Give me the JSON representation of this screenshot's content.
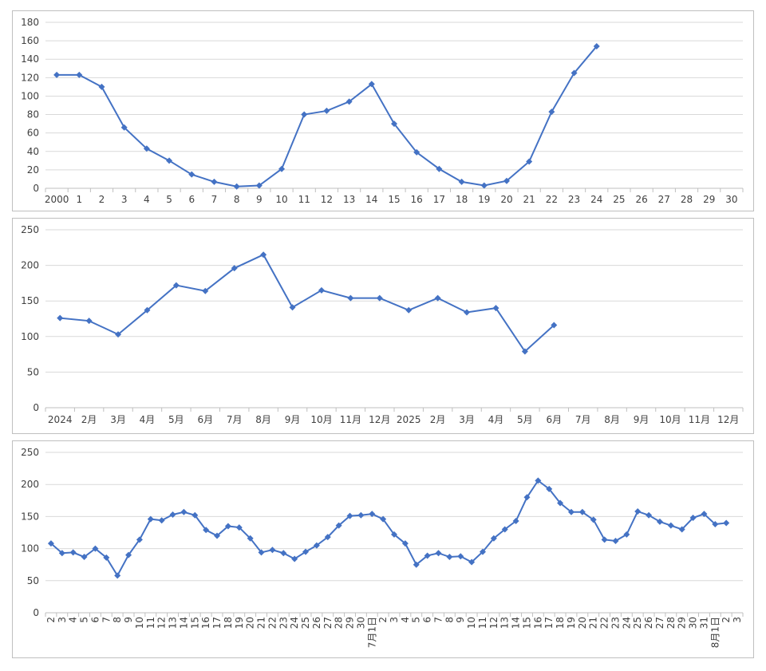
{
  "chart_data": [
    {
      "type": "line",
      "categories": [
        "2000",
        "1",
        "2",
        "3",
        "4",
        "5",
        "6",
        "7",
        "8",
        "9",
        "10",
        "11",
        "12",
        "13",
        "14",
        "15",
        "16",
        "17",
        "18",
        "19",
        "20",
        "21",
        "22",
        "23",
        "24",
        "25",
        "26",
        "27",
        "28",
        "29",
        "30"
      ],
      "series": [
        {
          "values": [
            123,
            123,
            110,
            66,
            43,
            30,
            15,
            7,
            2,
            3,
            21,
            80,
            84,
            94,
            113,
            70,
            39,
            21,
            7,
            3,
            8,
            29,
            83,
            125,
            154,
            null,
            null,
            null,
            null,
            null,
            null
          ]
        }
      ],
      "yticks": [
        0,
        20,
        40,
        60,
        80,
        100,
        120,
        140,
        160,
        180
      ],
      "ylim": [
        0,
        180
      ],
      "grid": true,
      "line_color": "#4472c4"
    },
    {
      "type": "line",
      "categories": [
        "2024",
        "2月",
        "3月",
        "4月",
        "5月",
        "6月",
        "7月",
        "8月",
        "9月",
        "10月",
        "11月",
        "12月",
        "2025",
        "2月",
        "3月",
        "4月",
        "5月",
        "6月",
        "7月",
        "8月",
        "9月",
        "10月",
        "11月",
        "12月"
      ],
      "series": [
        {
          "values": [
            126,
            122,
            103,
            137,
            172,
            164,
            196,
            215,
            141,
            165,
            154,
            154,
            137,
            154,
            134,
            140,
            79,
            116,
            null,
            null,
            null,
            null,
            null,
            null
          ]
        }
      ],
      "yticks": [
        0,
        50,
        100,
        150,
        200,
        250
      ],
      "ylim": [
        0,
        250
      ],
      "grid": true,
      "line_color": "#4472c4"
    },
    {
      "type": "line",
      "categories": [
        "2",
        "3",
        "4",
        "5",
        "6",
        "7",
        "8",
        "9",
        "10",
        "11",
        "12",
        "13",
        "14",
        "15",
        "16",
        "17",
        "18",
        "19",
        "20",
        "21",
        "22",
        "23",
        "24",
        "25",
        "26",
        "27",
        "28",
        "29",
        "30",
        "7月1日",
        "2",
        "3",
        "4",
        "5",
        "6",
        "7",
        "8",
        "9",
        "10",
        "11",
        "12",
        "13",
        "14",
        "15",
        "16",
        "17",
        "18",
        "19",
        "20",
        "21",
        "22",
        "23",
        "24",
        "25",
        "26",
        "27",
        "28",
        "29",
        "30",
        "31",
        "8月1日",
        "2",
        "3"
      ],
      "series": [
        {
          "values": [
            108,
            93,
            94,
            87,
            100,
            86,
            58,
            90,
            114,
            146,
            144,
            153,
            157,
            152,
            129,
            120,
            135,
            133,
            116,
            94,
            98,
            93,
            84,
            95,
            105,
            118,
            136,
            151,
            152,
            154,
            146,
            122,
            108,
            75,
            89,
            93,
            87,
            88,
            79,
            95,
            116,
            130,
            143,
            180,
            206,
            193,
            171,
            157,
            157,
            145,
            114,
            112,
            122,
            158,
            152,
            142,
            136,
            130,
            148,
            154,
            138,
            140,
            null
          ]
        }
      ],
      "yticks": [
        0,
        50,
        100,
        150,
        200,
        250
      ],
      "ylim": [
        0,
        250
      ],
      "grid": true,
      "line_color": "#4472c4"
    }
  ]
}
